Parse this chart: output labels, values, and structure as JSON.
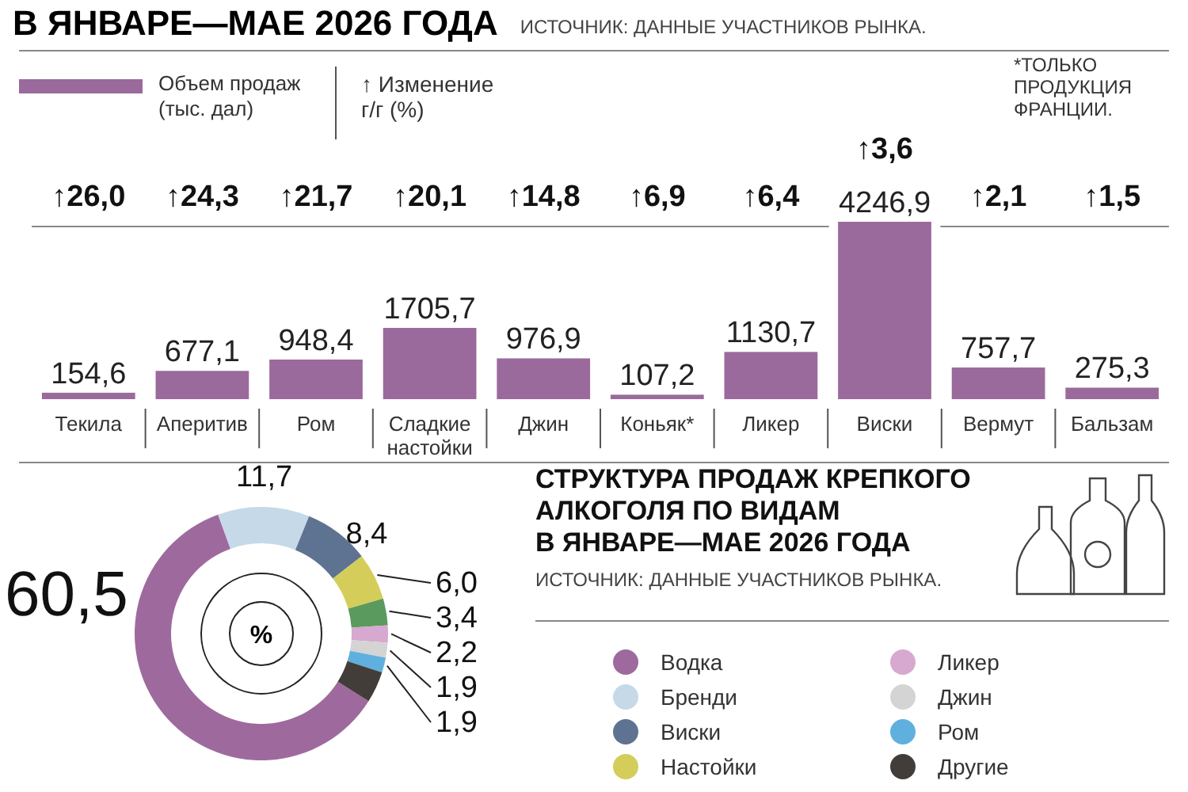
{
  "chart_data": [
    {
      "type": "bar",
      "title": "В ЯНВАРЕ—МАЕ 2026 ГОДА",
      "subtitle": "ИСТОЧНИК: ДАННЫЕ УЧАСТНИКОВ РЫНКА.",
      "categories": [
        "Текила",
        "Аперитив",
        "Ром",
        "Сладкие настойки",
        "Джин",
        "Коньяк*",
        "Ликер",
        "Виски",
        "Вермут",
        "Бальзам"
      ],
      "series": [
        {
          "name": "Объем продаж\n(тыс. дал)",
          "color": "#9b6a9c",
          "values": [
            154.6,
            677.1,
            948.4,
            1705.7,
            976.9,
            107.2,
            1130.7,
            4246.9,
            757.7,
            275.3
          ],
          "value_labels": [
            "154,6",
            "677,1",
            "948,4",
            "1705,7",
            "976,9",
            "107,2",
            "1130,7",
            "4246,9",
            "757,7",
            "275,3"
          ]
        }
      ],
      "legend": "top left",
      "annotations": [
        "↑26,0",
        "↑24,3",
        "↑21,7",
        "↑20,1",
        "↑14,8",
        "↑6,9",
        "↑6,4",
        "↑3,6",
        "↑2,1",
        "↑1,5",
        "↑ Изменение\nг/г (%)",
        "*ТОЛЬКО\nПРОДУКЦИЯ\nФРАНЦИИ."
      ]
    },
    {
      "type": "donut",
      "title": "СТРУКТУРА ПРОДАЖ КРЕПКОГО\nАЛКОГОЛЯ ПО ВИДАМ\nВ ЯНВАРЕ—МАЕ 2026 ГОДА",
      "subtitle": "ИСТОЧНИК: ДАННЫЕ УЧАСТНИКОВ РЫНКА.",
      "categories": [
        "Водка",
        "Бренди",
        "Виски",
        "Настойки",
        null,
        "Ликер",
        "Джин",
        "Ром",
        "Другие"
      ],
      "values": [
        60.5,
        11.7,
        8.4,
        6.0,
        3.4,
        2.2,
        1.9,
        1.9,
        4.0
      ],
      "colors": [
        "#9e6a9e",
        "#c5d9e8",
        "#5e7391",
        "#d4cd5a",
        "#5a9a5e",
        "#d7a8d0",
        "#d4d4d4",
        "#5fb0de",
        "#433d39"
      ],
      "value_labels": [
        "60,5",
        "11,7",
        "8,4",
        "6,0",
        "3,4",
        "2,2",
        "1,9",
        "1,9",
        null
      ],
      "legend": "right",
      "annotations": [
        "%"
      ]
    }
  ]
}
